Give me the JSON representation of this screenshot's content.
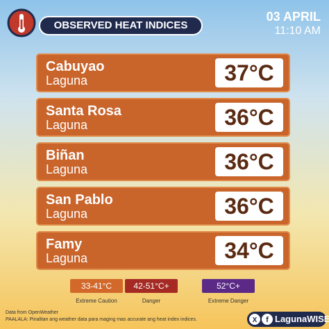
{
  "header": {
    "title": "OBSERVED HEAT INDICES",
    "date": "03 APRIL",
    "time": "11:10 AM"
  },
  "locations": [
    {
      "city": "Cabuyao",
      "province": "Laguna",
      "heat_index": "37°C"
    },
    {
      "city": "Santa Rosa",
      "province": "Laguna",
      "heat_index": "36°C"
    },
    {
      "city": "Biñan",
      "province": "Laguna",
      "heat_index": "36°C"
    },
    {
      "city": "San Pablo",
      "province": "Laguna",
      "heat_index": "36°C"
    },
    {
      "city": "Famy",
      "province": "Laguna",
      "heat_index": "34°C"
    }
  ],
  "legend": [
    {
      "range": "33-41°C",
      "label": "Extreme Caution",
      "color": "#d2692b"
    },
    {
      "range": "42-51°C+",
      "label": "Danger",
      "color": "#a52a24"
    },
    {
      "range": "52°C+",
      "label": "Extreme Danger",
      "color": "#5b2a86"
    }
  ],
  "footer": {
    "source": "Data from OpenWeather",
    "note": "PAALALA: Pinalitan ang weather data para maging mas accurate ang heat index indices.",
    "brand": "LagunaWISE"
  }
}
